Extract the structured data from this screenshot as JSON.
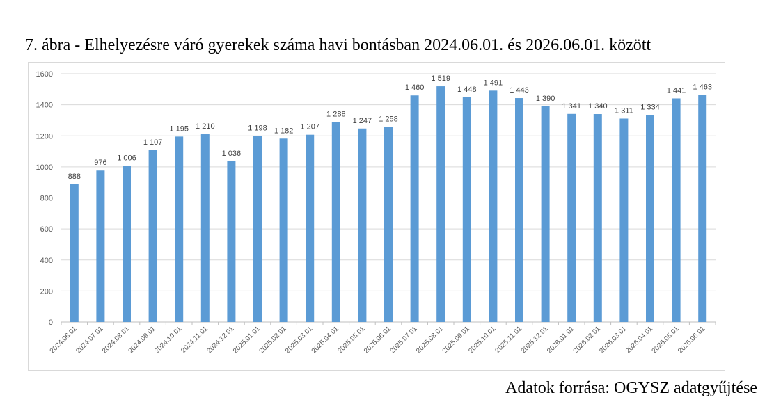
{
  "title": "7. ábra  - Elhelyezésre váró gyerekek száma havi bontásban 2024.06.01. és 2026.06.01. között",
  "source": "Adatok forrása: OGYSZ adatgyűjtése",
  "chart_data": {
    "type": "bar",
    "title": "7. ábra  - Elhelyezésre váró gyerekek száma havi bontásban 2024.06.01. és 2026.06.01. között",
    "xlabel": "",
    "ylabel": "",
    "ylim": [
      0,
      1600
    ],
    "yticks": [
      0,
      200,
      400,
      600,
      800,
      1000,
      1200,
      1400,
      1600
    ],
    "grid": true,
    "legend": "none",
    "bar_color": "#5b9bd5",
    "categories": [
      "2024.06.01",
      "2024.07.01",
      "2024.08.01",
      "2024.09.01",
      "2024.10.01",
      "2024.11.01",
      "2024.12.01",
      "2025.01.01",
      "2025.02.01",
      "2025.03.01",
      "2025.04.01",
      "2025.05.01",
      "2025.06.01",
      "2025.07.01",
      "2025.08.01",
      "2025.09.01",
      "2025.10.01",
      "2025.11.01",
      "2025.12.01",
      "2026.01.01",
      "2026.02.01",
      "2026.03.01",
      "2026.04.01",
      "2026.05.01",
      "2026.06.01"
    ],
    "values": [
      888,
      976,
      1006,
      1107,
      1195,
      1210,
      1036,
      1198,
      1182,
      1207,
      1288,
      1247,
      1258,
      1460,
      1519,
      1448,
      1491,
      1443,
      1390,
      1341,
      1340,
      1311,
      1334,
      1441,
      1463
    ],
    "data_labels": [
      "888",
      "976",
      "1 006",
      "1 107",
      "1 195",
      "1 210",
      "1 036",
      "1 198",
      "1 182",
      "1 207",
      "1 288",
      "1 247",
      "1 258",
      "1 460",
      "1 519",
      "1 448",
      "1 491",
      "1 443",
      "1 390",
      "1 341",
      "1 340",
      "1 311",
      "1 334",
      "1 441",
      "1 463"
    ]
  }
}
